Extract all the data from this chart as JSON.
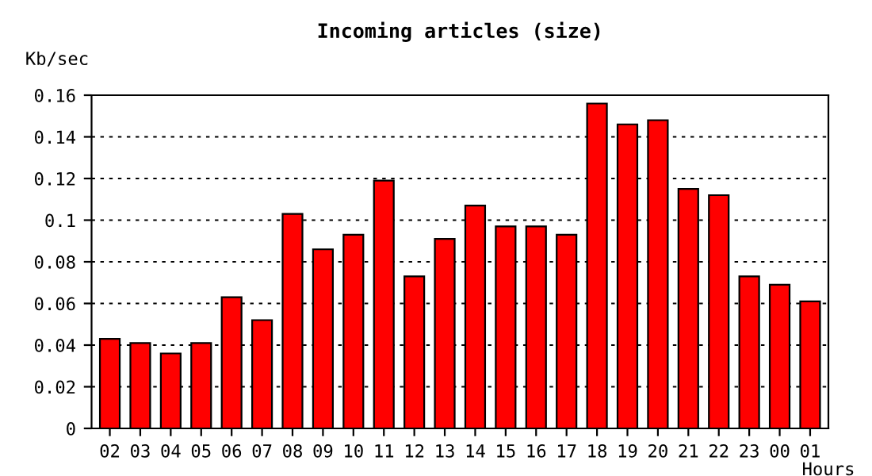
{
  "chart_data": {
    "type": "bar",
    "title": "Incoming articles (size)",
    "xlabel": "Hours",
    "ylabel": "Kb/sec",
    "categories": [
      "02",
      "03",
      "04",
      "05",
      "06",
      "07",
      "08",
      "09",
      "10",
      "11",
      "12",
      "13",
      "14",
      "15",
      "16",
      "17",
      "18",
      "19",
      "20",
      "21",
      "22",
      "23",
      "00",
      "01"
    ],
    "values": [
      0.043,
      0.041,
      0.036,
      0.041,
      0.063,
      0.052,
      0.103,
      0.086,
      0.093,
      0.119,
      0.073,
      0.091,
      0.107,
      0.097,
      0.097,
      0.093,
      0.156,
      0.146,
      0.148,
      0.115,
      0.112,
      0.073,
      0.069,
      0.061
    ],
    "color": "#ff0000",
    "ylim": [
      0,
      0.16
    ],
    "yticks": [
      0,
      0.02,
      0.04,
      0.06,
      0.08,
      0.1,
      0.12,
      0.14,
      0.16
    ],
    "grid": "y"
  }
}
